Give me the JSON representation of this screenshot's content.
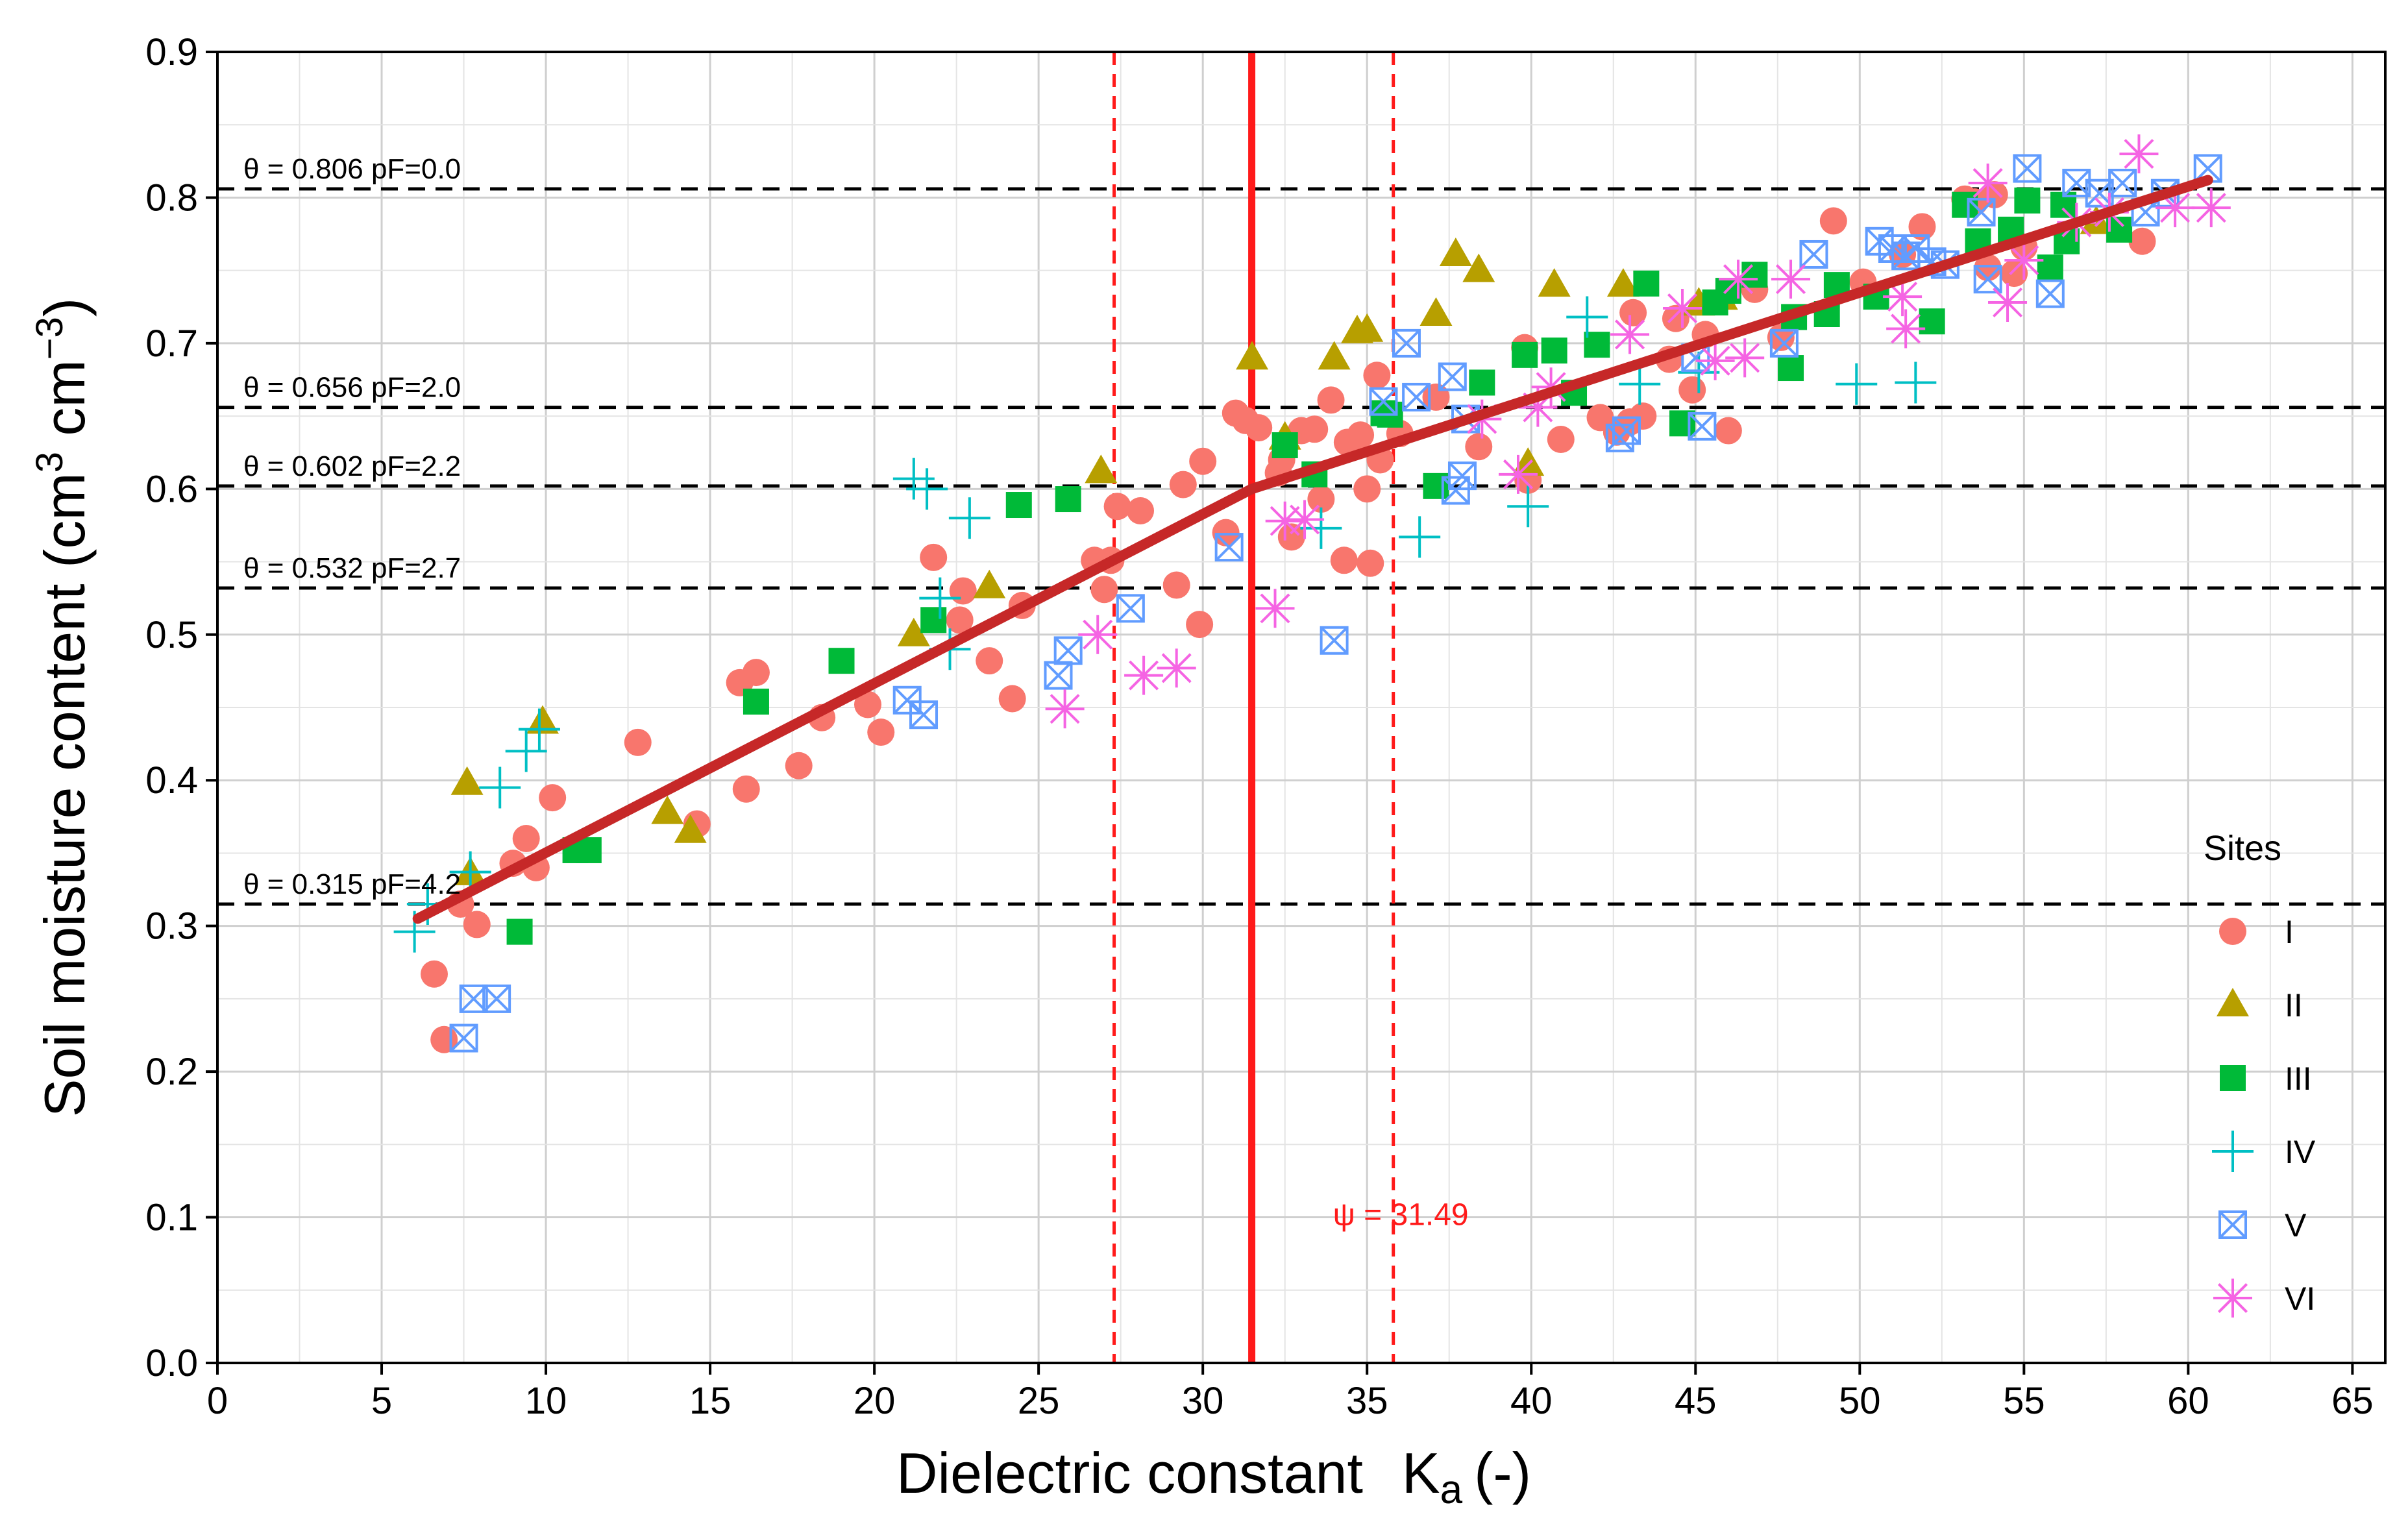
{
  "chart_data": {
    "type": "scatter",
    "title": "",
    "xlabel": "Dielectric constant",
    "xlabel_symbol": "K",
    "xlabel_sub": "a",
    "xlabel_unit": "(-)",
    "ylabel": "Soil moisture content (cm",
    "ylabel_sup1": "3",
    "ylabel_mid": " cm",
    "ylabel_sup2": "−3",
    "ylabel_end": ")",
    "xlim": [
      0,
      66
    ],
    "ylim": [
      0,
      0.9
    ],
    "x_ticks": [
      0,
      5,
      10,
      15,
      20,
      25,
      30,
      35,
      40,
      45,
      50,
      55,
      60,
      65
    ],
    "x_tick_labels": [
      "0",
      "5",
      "10",
      "15",
      "20",
      "25",
      "30",
      "35",
      "40",
      "45",
      "50",
      "55",
      "60",
      "65"
    ],
    "y_ticks": [
      0,
      0.1,
      0.2,
      0.3,
      0.4,
      0.5,
      0.6,
      0.7,
      0.8,
      0.9
    ],
    "y_tick_labels": [
      "0.0",
      "0.1",
      "0.2",
      "0.3",
      "0.4",
      "0.5",
      "0.6",
      "0.7",
      "0.8",
      "0.9"
    ],
    "grid": true,
    "legend": {
      "title": "Sites",
      "position": "right"
    },
    "reference_lines": [
      {
        "theta": 0.806,
        "label": "θ = 0.806  pF=0.0"
      },
      {
        "theta": 0.656,
        "label": "θ = 0.656  pF=2.0"
      },
      {
        "theta": 0.602,
        "label": "θ = 0.602  pF=2.2"
      },
      {
        "theta": 0.532,
        "label": "θ = 0.532  pF=2.7"
      },
      {
        "theta": 0.315,
        "label": "θ = 0.315  pF=4.2"
      }
    ],
    "breakpoint": {
      "x": 31.49,
      "ci": [
        27.3,
        35.8
      ],
      "label": "ψ = 31.49"
    },
    "fit_line": {
      "color": "#c62828",
      "x": [
        6.1,
        31.49,
        60.6
      ],
      "y": [
        0.305,
        0.6,
        0.812
      ]
    },
    "series": [
      {
        "name": "I",
        "marker": "circle",
        "color": "#f8766d",
        "points": [
          [
            6.6,
            0.267
          ],
          [
            6.9,
            0.222
          ],
          [
            7.4,
            0.315
          ],
          [
            7.9,
            0.301
          ],
          [
            9.0,
            0.343
          ],
          [
            9.4,
            0.36
          ],
          [
            9.7,
            0.34
          ],
          [
            10.2,
            0.388
          ],
          [
            12.8,
            0.426
          ],
          [
            14.6,
            0.37
          ],
          [
            15.9,
            0.467
          ],
          [
            16.1,
            0.394
          ],
          [
            16.4,
            0.474
          ],
          [
            17.7,
            0.41
          ],
          [
            18.4,
            0.443
          ],
          [
            19.8,
            0.452
          ],
          [
            20.2,
            0.433
          ],
          [
            21.8,
            0.553
          ],
          [
            22.6,
            0.51
          ],
          [
            22.7,
            0.53
          ],
          [
            23.5,
            0.482
          ],
          [
            24.2,
            0.456
          ],
          [
            24.5,
            0.52
          ],
          [
            26.7,
            0.551
          ],
          [
            27.0,
            0.531
          ],
          [
            27.2,
            0.551
          ],
          [
            27.4,
            0.588
          ],
          [
            28.1,
            0.585
          ],
          [
            29.2,
            0.534
          ],
          [
            29.4,
            0.603
          ],
          [
            29.9,
            0.507
          ],
          [
            30.0,
            0.619
          ],
          [
            30.7,
            0.57
          ],
          [
            31.0,
            0.652
          ],
          [
            31.3,
            0.647
          ],
          [
            31.7,
            0.642
          ],
          [
            32.3,
            0.611
          ],
          [
            32.4,
            0.62
          ],
          [
            32.7,
            0.567
          ],
          [
            33.0,
            0.64
          ],
          [
            33.4,
            0.641
          ],
          [
            33.6,
            0.593
          ],
          [
            33.9,
            0.661
          ],
          [
            34.3,
            0.551
          ],
          [
            34.4,
            0.632
          ],
          [
            34.8,
            0.637
          ],
          [
            35.0,
            0.6
          ],
          [
            35.1,
            0.549
          ],
          [
            35.3,
            0.678
          ],
          [
            35.4,
            0.62
          ],
          [
            36.0,
            0.638
          ],
          [
            37.1,
            0.663
          ],
          [
            38.4,
            0.629
          ],
          [
            39.8,
            0.697
          ],
          [
            39.9,
            0.606
          ],
          [
            40.9,
            0.634
          ],
          [
            42.1,
            0.649
          ],
          [
            42.6,
            0.639
          ],
          [
            43.0,
            0.646
          ],
          [
            43.1,
            0.721
          ],
          [
            43.4,
            0.65
          ],
          [
            44.2,
            0.689
          ],
          [
            44.4,
            0.717
          ],
          [
            44.9,
            0.668
          ],
          [
            45.3,
            0.706
          ],
          [
            46.0,
            0.64
          ],
          [
            46.8,
            0.737
          ],
          [
            47.6,
            0.704
          ],
          [
            49.2,
            0.784
          ],
          [
            50.1,
            0.742
          ],
          [
            51.3,
            0.761
          ],
          [
            51.9,
            0.78
          ],
          [
            53.2,
            0.799
          ],
          [
            53.5,
            0.797
          ],
          [
            53.9,
            0.752
          ],
          [
            54.1,
            0.802
          ],
          [
            54.7,
            0.748
          ],
          [
            55.0,
            0.766
          ],
          [
            58.6,
            0.77
          ]
        ]
      },
      {
        "name": "II",
        "marker": "triangle",
        "color": "#b79f00",
        "points": [
          [
            7.6,
            0.398
          ],
          [
            7.7,
            0.336
          ],
          [
            9.9,
            0.44
          ],
          [
            13.7,
            0.378
          ],
          [
            14.4,
            0.365
          ],
          [
            21.2,
            0.5
          ],
          [
            23.5,
            0.533
          ],
          [
            26.9,
            0.612
          ],
          [
            31.5,
            0.69
          ],
          [
            32.5,
            0.635
          ],
          [
            34.0,
            0.69
          ],
          [
            34.7,
            0.708
          ],
          [
            35.0,
            0.709
          ],
          [
            37.1,
            0.72
          ],
          [
            37.7,
            0.761
          ],
          [
            38.4,
            0.75
          ],
          [
            39.9,
            0.617
          ],
          [
            40.7,
            0.74
          ],
          [
            42.8,
            0.74
          ],
          [
            45.1,
            0.727
          ],
          [
            45.8,
            0.731
          ],
          [
            57.2,
            0.783
          ]
        ]
      },
      {
        "name": "III",
        "marker": "square",
        "color": "#00ba38",
        "points": [
          [
            9.2,
            0.296
          ],
          [
            10.9,
            0.352
          ],
          [
            11.3,
            0.352
          ],
          [
            16.4,
            0.454
          ],
          [
            19.0,
            0.482
          ],
          [
            21.8,
            0.51
          ],
          [
            24.4,
            0.589
          ],
          [
            25.9,
            0.593
          ],
          [
            32.5,
            0.63
          ],
          [
            33.4,
            0.61
          ],
          [
            35.5,
            0.652
          ],
          [
            35.7,
            0.651
          ],
          [
            37.1,
            0.602
          ],
          [
            38.5,
            0.673
          ],
          [
            39.8,
            0.692
          ],
          [
            40.7,
            0.695
          ],
          [
            41.3,
            0.666
          ],
          [
            42.0,
            0.699
          ],
          [
            43.5,
            0.741
          ],
          [
            44.6,
            0.645
          ],
          [
            45.6,
            0.728
          ],
          [
            46.0,
            0.736
          ],
          [
            46.8,
            0.747
          ],
          [
            47.9,
            0.683
          ],
          [
            48.0,
            0.718
          ],
          [
            49.0,
            0.72
          ],
          [
            49.3,
            0.74
          ],
          [
            50.5,
            0.732
          ],
          [
            52.2,
            0.715
          ],
          [
            53.2,
            0.795
          ],
          [
            53.6,
            0.77
          ],
          [
            54.6,
            0.778
          ],
          [
            55.1,
            0.798
          ],
          [
            55.8,
            0.752
          ],
          [
            56.2,
            0.795
          ],
          [
            56.3,
            0.77
          ],
          [
            57.9,
            0.778
          ]
        ]
      },
      {
        "name": "IV",
        "marker": "plus",
        "color": "#00bfc4",
        "points": [
          [
            6.0,
            0.296
          ],
          [
            6.4,
            0.315
          ],
          [
            7.7,
            0.337
          ],
          [
            8.6,
            0.395
          ],
          [
            9.4,
            0.42
          ],
          [
            9.8,
            0.435
          ],
          [
            21.2,
            0.607
          ],
          [
            21.6,
            0.6
          ],
          [
            22.0,
            0.525
          ],
          [
            22.3,
            0.49
          ],
          [
            22.9,
            0.58
          ],
          [
            33.6,
            0.573
          ],
          [
            36.6,
            0.567
          ],
          [
            39.9,
            0.588
          ],
          [
            41.7,
            0.718
          ],
          [
            43.3,
            0.672
          ],
          [
            45.1,
            0.68
          ],
          [
            49.9,
            0.672
          ],
          [
            51.7,
            0.673
          ]
        ]
      },
      {
        "name": "V",
        "marker": "boxx",
        "color": "#619cff",
        "points": [
          [
            7.5,
            0.223
          ],
          [
            7.8,
            0.25
          ],
          [
            8.5,
            0.25
          ],
          [
            21.0,
            0.455
          ],
          [
            21.5,
            0.445
          ],
          [
            25.6,
            0.472
          ],
          [
            25.9,
            0.489
          ],
          [
            27.8,
            0.518
          ],
          [
            30.8,
            0.56
          ],
          [
            34.0,
            0.496
          ],
          [
            35.5,
            0.66
          ],
          [
            36.2,
            0.7
          ],
          [
            36.5,
            0.663
          ],
          [
            37.6,
            0.677
          ],
          [
            37.7,
            0.599
          ],
          [
            37.9,
            0.609
          ],
          [
            38.0,
            0.648
          ],
          [
            42.7,
            0.635
          ],
          [
            42.9,
            0.64
          ],
          [
            45.0,
            0.69
          ],
          [
            45.2,
            0.643
          ],
          [
            47.7,
            0.7
          ],
          [
            48.6,
            0.761
          ],
          [
            50.6,
            0.77
          ],
          [
            51.0,
            0.765
          ],
          [
            51.4,
            0.76
          ],
          [
            51.7,
            0.765
          ],
          [
            52.2,
            0.756
          ],
          [
            52.6,
            0.754
          ],
          [
            53.7,
            0.79
          ],
          [
            53.9,
            0.744
          ],
          [
            55.1,
            0.82
          ],
          [
            55.8,
            0.734
          ],
          [
            56.6,
            0.81
          ],
          [
            57.3,
            0.803
          ],
          [
            58.0,
            0.81
          ],
          [
            58.7,
            0.79
          ],
          [
            59.3,
            0.803
          ],
          [
            60.6,
            0.82
          ]
        ]
      },
      {
        "name": "VI",
        "marker": "star",
        "color": "#f564e3",
        "points": [
          [
            25.8,
            0.449
          ],
          [
            26.8,
            0.5
          ],
          [
            28.2,
            0.472
          ],
          [
            29.2,
            0.477
          ],
          [
            32.2,
            0.518
          ],
          [
            32.5,
            0.578
          ],
          [
            33.1,
            0.579
          ],
          [
            38.5,
            0.648
          ],
          [
            39.6,
            0.61
          ],
          [
            40.2,
            0.656
          ],
          [
            40.6,
            0.67
          ],
          [
            43.0,
            0.706
          ],
          [
            44.6,
            0.724
          ],
          [
            45.6,
            0.688
          ],
          [
            46.3,
            0.744
          ],
          [
            46.5,
            0.69
          ],
          [
            47.9,
            0.744
          ],
          [
            51.3,
            0.732
          ],
          [
            51.4,
            0.71
          ],
          [
            53.9,
            0.81
          ],
          [
            54.5,
            0.728
          ],
          [
            55.0,
            0.757
          ],
          [
            56.6,
            0.783
          ],
          [
            57.6,
            0.79
          ],
          [
            58.5,
            0.83
          ],
          [
            59.6,
            0.793
          ],
          [
            60.7,
            0.793
          ]
        ]
      }
    ]
  }
}
